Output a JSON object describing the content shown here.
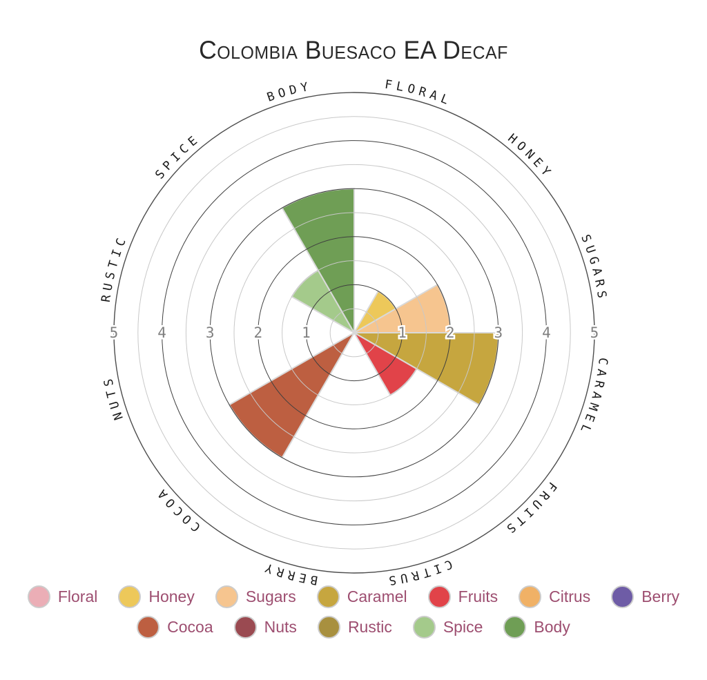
{
  "title": "Colombia Buesaco EA Decaf",
  "chart_data": {
    "type": "polar_bar",
    "description": "Coffee flavor wheel: 12 equal 30-degree sectors starting at 12 o'clock, clockwise; bar length is score 0-5",
    "categories": [
      "Floral",
      "Honey",
      "Sugars",
      "Caramel",
      "Fruits",
      "Citrus",
      "Berry",
      "Cocoa",
      "Nuts",
      "Rustic",
      "Spice",
      "Body"
    ],
    "values": [
      0,
      1,
      2,
      3,
      1.5,
      0,
      0,
      3,
      0,
      0,
      1.5,
      3
    ],
    "colors": [
      "#ebaeb6",
      "#edc85a",
      "#f6c58f",
      "#c6a63f",
      "#e14349",
      "#f0b166",
      "#6e5ca6",
      "#bd5f41",
      "#9a4a51",
      "#a8903f",
      "#a4ca8b",
      "#6f9e55"
    ],
    "axis": {
      "min": 0,
      "max": 5,
      "ring_step": 0.5,
      "tick_labels": [
        "1",
        "2",
        "3",
        "4",
        "5"
      ],
      "tick_sides": [
        "left",
        "right"
      ]
    },
    "start": "top",
    "direction": "clockwise",
    "sector_degrees": 30,
    "grid": {
      "major_ring_color": "#3f3f3f",
      "minor_ring_color": "#c8c8c8",
      "outer_ring_color": "#4c4c4c",
      "wedge_outline_color": "#d9d9d9"
    },
    "tick_label_color": "#7f7f7f",
    "category_label_color": "#1b1b1b"
  },
  "legend": {
    "rows": [
      [
        "Floral",
        "Honey",
        "Sugars",
        "Caramel",
        "Fruits",
        "Citrus",
        "Berry"
      ],
      [
        "Cocoa",
        "Nuts",
        "Rustic",
        "Spice",
        "Body"
      ]
    ],
    "text_color": "#9d4e70",
    "swatch_border_color": "#cccccc"
  }
}
